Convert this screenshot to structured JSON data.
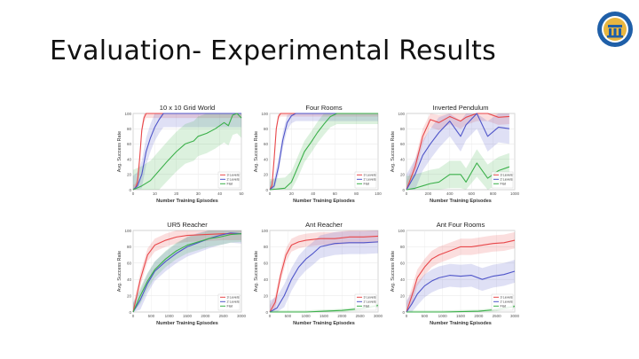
{
  "slide": {
    "title": "Evaluation- Experimental Results"
  },
  "logo": {
    "icon": "university-seal-icon",
    "color": "#1f5fa8",
    "accent": "#e8b640"
  },
  "colors": {
    "three_levels": "#e8474a",
    "two_levels": "#4f55c9",
    "flat": "#3bb04a"
  },
  "chart_data": [
    {
      "type": "line",
      "title": "10 x 10 Grid World",
      "xlabel": "Number Training Episodes",
      "ylabel": "Avg. Success Rate",
      "xlim": [
        0,
        50
      ],
      "ylim": [
        0,
        100
      ],
      "x_ticks": [
        "0",
        "10",
        "20",
        "30",
        "40",
        "50"
      ],
      "y_ticks": [
        "0",
        "20",
        "40",
        "60",
        "80",
        "100"
      ],
      "legend": [
        "3 Levels",
        "2 Levels",
        "Flat"
      ],
      "legend_position": "lower-right",
      "series": [
        {
          "name": "3 Levels",
          "color": "#e8474a",
          "band": 6,
          "points": [
            [
              0,
              0
            ],
            [
              1,
              2
            ],
            [
              2,
              10
            ],
            [
              3,
              40
            ],
            [
              4,
              78
            ],
            [
              5,
              94
            ],
            [
              6,
              100
            ],
            [
              10,
              100
            ],
            [
              20,
              100
            ],
            [
              30,
              100
            ],
            [
              40,
              100
            ],
            [
              50,
              100
            ]
          ]
        },
        {
          "name": "2 Levels",
          "color": "#4f55c9",
          "band": 18,
          "points": [
            [
              0,
              0
            ],
            [
              2,
              5
            ],
            [
              4,
              20
            ],
            [
              6,
              50
            ],
            [
              8,
              68
            ],
            [
              10,
              82
            ],
            [
              12,
              92
            ],
            [
              14,
              100
            ],
            [
              20,
              100
            ],
            [
              30,
              100
            ],
            [
              40,
              100
            ],
            [
              50,
              100
            ]
          ]
        },
        {
          "name": "Flat",
          "color": "#3bb04a",
          "band": 26,
          "points": [
            [
              0,
              0
            ],
            [
              4,
              5
            ],
            [
              8,
              12
            ],
            [
              12,
              25
            ],
            [
              16,
              38
            ],
            [
              20,
              50
            ],
            [
              24,
              60
            ],
            [
              28,
              64
            ],
            [
              30,
              70
            ],
            [
              34,
              74
            ],
            [
              38,
              80
            ],
            [
              42,
              88
            ],
            [
              44,
              84
            ],
            [
              46,
              98
            ],
            [
              48,
              100
            ],
            [
              50,
              94
            ]
          ]
        }
      ]
    },
    {
      "type": "line",
      "title": "Four Rooms",
      "xlabel": "Number Training Episodes",
      "ylabel": "Avg. Success Rate",
      "xlim": [
        0,
        100
      ],
      "ylim": [
        0,
        100
      ],
      "x_ticks": [
        "0",
        "20",
        "40",
        "60",
        "80",
        "100"
      ],
      "y_ticks": [
        "0",
        "20",
        "40",
        "60",
        "80",
        "100"
      ],
      "legend": [
        "3 Levels",
        "2 Levels",
        "Flat"
      ],
      "legend_position": "lower-right",
      "series": [
        {
          "name": "3 Levels",
          "color": "#e8474a",
          "band": 4,
          "points": [
            [
              0,
              0
            ],
            [
              2,
              5
            ],
            [
              4,
              40
            ],
            [
              6,
              80
            ],
            [
              8,
              96
            ],
            [
              10,
              100
            ],
            [
              20,
              100
            ],
            [
              40,
              100
            ],
            [
              60,
              100
            ],
            [
              80,
              100
            ],
            [
              100,
              100
            ]
          ]
        },
        {
          "name": "2 Levels",
          "color": "#4f55c9",
          "band": 10,
          "points": [
            [
              0,
              0
            ],
            [
              4,
              5
            ],
            [
              8,
              30
            ],
            [
              12,
              65
            ],
            [
              16,
              88
            ],
            [
              20,
              97
            ],
            [
              24,
              100
            ],
            [
              40,
              100
            ],
            [
              60,
              100
            ],
            [
              80,
              100
            ],
            [
              100,
              100
            ]
          ]
        },
        {
          "name": "Flat",
          "color": "#3bb04a",
          "band": 14,
          "points": [
            [
              0,
              0
            ],
            [
              14,
              2
            ],
            [
              20,
              10
            ],
            [
              26,
              30
            ],
            [
              32,
              50
            ],
            [
              38,
              62
            ],
            [
              44,
              75
            ],
            [
              50,
              86
            ],
            [
              56,
              96
            ],
            [
              62,
              100
            ],
            [
              80,
              100
            ],
            [
              100,
              100
            ]
          ]
        }
      ]
    },
    {
      "type": "line",
      "title": "Inverted Pendulum",
      "xlabel": "Number Training Episodes",
      "ylabel": "Avg. Success Rate",
      "xlim": [
        0,
        1000
      ],
      "ylim": [
        0,
        100
      ],
      "x_ticks": [
        "0",
        "200",
        "400",
        "600",
        "800",
        "1000"
      ],
      "y_ticks": [
        "0",
        "20",
        "40",
        "60",
        "80",
        "100"
      ],
      "legend": [
        "3 Levels",
        "2 Levels",
        "Flat"
      ],
      "legend_position": "lower-right",
      "series": [
        {
          "name": "3 Levels",
          "color": "#e8474a",
          "band": 10,
          "points": [
            [
              0,
              0
            ],
            [
              80,
              30
            ],
            [
              150,
              70
            ],
            [
              220,
              92
            ],
            [
              300,
              88
            ],
            [
              400,
              96
            ],
            [
              500,
              90
            ],
            [
              550,
              95
            ],
            [
              650,
              100
            ],
            [
              750,
              100
            ],
            [
              850,
              95
            ],
            [
              950,
              96
            ]
          ]
        },
        {
          "name": "2 Levels",
          "color": "#4f55c9",
          "band": 20,
          "points": [
            [
              0,
              0
            ],
            [
              80,
              20
            ],
            [
              150,
              45
            ],
            [
              220,
              60
            ],
            [
              300,
              75
            ],
            [
              400,
              90
            ],
            [
              500,
              70
            ],
            [
              550,
              85
            ],
            [
              650,
              100
            ],
            [
              750,
              70
            ],
            [
              850,
              82
            ],
            [
              950,
              80
            ]
          ]
        },
        {
          "name": "Flat",
          "color": "#3bb04a",
          "band": 18,
          "points": [
            [
              0,
              0
            ],
            [
              80,
              2
            ],
            [
              150,
              5
            ],
            [
              220,
              8
            ],
            [
              300,
              10
            ],
            [
              400,
              20
            ],
            [
              500,
              20
            ],
            [
              550,
              10
            ],
            [
              650,
              35
            ],
            [
              750,
              15
            ],
            [
              850,
              25
            ],
            [
              950,
              30
            ]
          ]
        }
      ]
    },
    {
      "type": "line",
      "title": "UR5 Reacher",
      "xlabel": "Number Training Episodes",
      "ylabel": "Avg. Success Rate",
      "xlim": [
        0,
        3000
      ],
      "ylim": [
        0,
        100
      ],
      "x_ticks": [
        "0",
        "500",
        "1000",
        "1500",
        "2000",
        "2500",
        "3000"
      ],
      "y_ticks": [
        "0",
        "20",
        "40",
        "60",
        "80",
        "100"
      ],
      "legend": [
        "3 Levels",
        "2 Levels",
        "Flat"
      ],
      "legend_position": "lower-right",
      "series": [
        {
          "name": "3 Levels",
          "color": "#e8474a",
          "band": 8,
          "points": [
            [
              0,
              0
            ],
            [
              200,
              40
            ],
            [
              400,
              70
            ],
            [
              600,
              82
            ],
            [
              900,
              88
            ],
            [
              1200,
              92
            ],
            [
              1500,
              94
            ],
            [
              2000,
              95
            ],
            [
              2500,
              96
            ],
            [
              3000,
              96
            ]
          ]
        },
        {
          "name": "2 Levels",
          "color": "#4f55c9",
          "band": 12,
          "points": [
            [
              0,
              0
            ],
            [
              200,
              15
            ],
            [
              400,
              35
            ],
            [
              600,
              50
            ],
            [
              900,
              62
            ],
            [
              1200,
              72
            ],
            [
              1500,
              80
            ],
            [
              1800,
              85
            ],
            [
              2100,
              90
            ],
            [
              2400,
              94
            ],
            [
              2700,
              97
            ],
            [
              3000,
              96
            ]
          ]
        },
        {
          "name": "Flat",
          "color": "#3bb04a",
          "band": 10,
          "points": [
            [
              0,
              0
            ],
            [
              200,
              20
            ],
            [
              400,
              38
            ],
            [
              600,
              52
            ],
            [
              900,
              65
            ],
            [
              1200,
              75
            ],
            [
              1500,
              82
            ],
            [
              1800,
              86
            ],
            [
              2100,
              90
            ],
            [
              2400,
              92
            ],
            [
              2700,
              95
            ],
            [
              3000,
              96
            ]
          ]
        }
      ]
    },
    {
      "type": "line",
      "title": "Ant Reacher",
      "xlabel": "Number Training Episodes",
      "ylabel": "Avg. Success Rate",
      "xlim": [
        0,
        3000
      ],
      "ylim": [
        0,
        100
      ],
      "x_ticks": [
        "0",
        "500",
        "1000",
        "1500",
        "2000",
        "2500",
        "3000"
      ],
      "y_ticks": [
        "0",
        "20",
        "40",
        "60",
        "80",
        "100"
      ],
      "legend": [
        "3 Levels",
        "2 Levels",
        "Flat"
      ],
      "legend_position": "lower-right",
      "series": [
        {
          "name": "3 Levels",
          "color": "#e8474a",
          "band": 8,
          "points": [
            [
              0,
              0
            ],
            [
              150,
              12
            ],
            [
              300,
              45
            ],
            [
              450,
              70
            ],
            [
              600,
              82
            ],
            [
              800,
              86
            ],
            [
              1000,
              88
            ],
            [
              1400,
              90
            ],
            [
              1800,
              90
            ],
            [
              2200,
              92
            ],
            [
              2600,
              92
            ],
            [
              3000,
              93
            ]
          ]
        },
        {
          "name": "2 Levels",
          "color": "#4f55c9",
          "band": 14,
          "points": [
            [
              0,
              0
            ],
            [
              200,
              5
            ],
            [
              400,
              20
            ],
            [
              600,
              40
            ],
            [
              800,
              55
            ],
            [
              1000,
              65
            ],
            [
              1200,
              72
            ],
            [
              1400,
              80
            ],
            [
              1800,
              84
            ],
            [
              2200,
              85
            ],
            [
              2600,
              85
            ],
            [
              3000,
              86
            ]
          ]
        },
        {
          "name": "Flat",
          "color": "#3bb04a",
          "band": 2,
          "points": [
            [
              0,
              0
            ],
            [
              500,
              0
            ],
            [
              1000,
              0
            ],
            [
              1500,
              1
            ],
            [
              2000,
              2
            ],
            [
              2500,
              4
            ],
            [
              3000,
              8
            ]
          ]
        }
      ]
    },
    {
      "type": "line",
      "title": "Ant Four Rooms",
      "xlabel": "Number Training Episodes",
      "ylabel": "Avg. Success Rate",
      "xlim": [
        0,
        3000
      ],
      "ylim": [
        0,
        100
      ],
      "x_ticks": [
        "0",
        "500",
        "1000",
        "1500",
        "2000",
        "2500",
        "3000"
      ],
      "y_ticks": [
        "0",
        "20",
        "40",
        "60",
        "80",
        "100"
      ],
      "legend": [
        "3 Levels",
        "2 Levels",
        "Flat"
      ],
      "legend_position": "lower-right",
      "series": [
        {
          "name": "3 Levels",
          "color": "#e8474a",
          "band": 10,
          "points": [
            [
              0,
              0
            ],
            [
              150,
              20
            ],
            [
              300,
              42
            ],
            [
              500,
              55
            ],
            [
              700,
              65
            ],
            [
              900,
              70
            ],
            [
              1200,
              75
            ],
            [
              1500,
              80
            ],
            [
              1800,
              80
            ],
            [
              2100,
              82
            ],
            [
              2400,
              84
            ],
            [
              2700,
              85
            ],
            [
              3000,
              88
            ]
          ]
        },
        {
          "name": "2 Levels",
          "color": "#4f55c9",
          "band": 14,
          "points": [
            [
              0,
              0
            ],
            [
              150,
              10
            ],
            [
              300,
              22
            ],
            [
              500,
              32
            ],
            [
              700,
              38
            ],
            [
              900,
              42
            ],
            [
              1200,
              45
            ],
            [
              1500,
              44
            ],
            [
              1800,
              45
            ],
            [
              2100,
              40
            ],
            [
              2400,
              44
            ],
            [
              2700,
              46
            ],
            [
              3000,
              50
            ]
          ]
        },
        {
          "name": "Flat",
          "color": "#3bb04a",
          "band": 2,
          "points": [
            [
              0,
              0
            ],
            [
              1000,
              0
            ],
            [
              2000,
              1
            ],
            [
              2500,
              3
            ],
            [
              3000,
              7
            ]
          ]
        }
      ]
    }
  ]
}
